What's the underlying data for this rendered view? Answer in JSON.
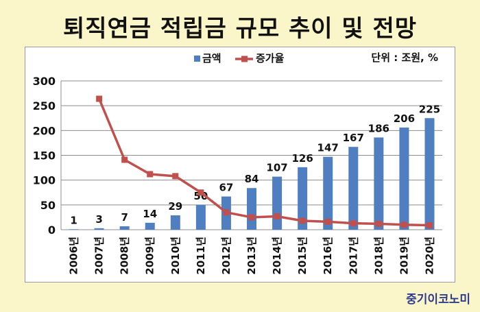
{
  "title": "퇴직연금 적립금 규모 추이 및 전망",
  "brand": "중기이코노미",
  "chart_data": {
    "type": "bar+line",
    "unit_note": "단위 : 조원, %",
    "legend": [
      {
        "label": "금액",
        "color": "#4f7fc1",
        "kind": "bar"
      },
      {
        "label": "증가율",
        "color": "#c0504d",
        "kind": "line"
      }
    ],
    "categories": [
      "2006년",
      "2007년",
      "2008년",
      "2009년",
      "2010년",
      "2011년",
      "2012년",
      "2013년",
      "2014년",
      "2015년",
      "2016년",
      "2017년",
      "2018년",
      "2019년",
      "2020년"
    ],
    "series": [
      {
        "name": "금액",
        "type": "bar",
        "values": [
          1,
          3,
          7,
          14,
          29,
          50,
          67,
          84,
          107,
          126,
          147,
          167,
          186,
          206,
          225
        ]
      },
      {
        "name": "증가율",
        "type": "line",
        "values": [
          null,
          264,
          141,
          112,
          108,
          75,
          35,
          25,
          27,
          18,
          16,
          13,
          12,
          10,
          9
        ]
      }
    ],
    "ylim": [
      0,
      300
    ],
    "yticks": [
      0,
      50,
      100,
      150,
      200,
      250,
      300
    ],
    "grid": true,
    "legend_position": "top-center"
  }
}
